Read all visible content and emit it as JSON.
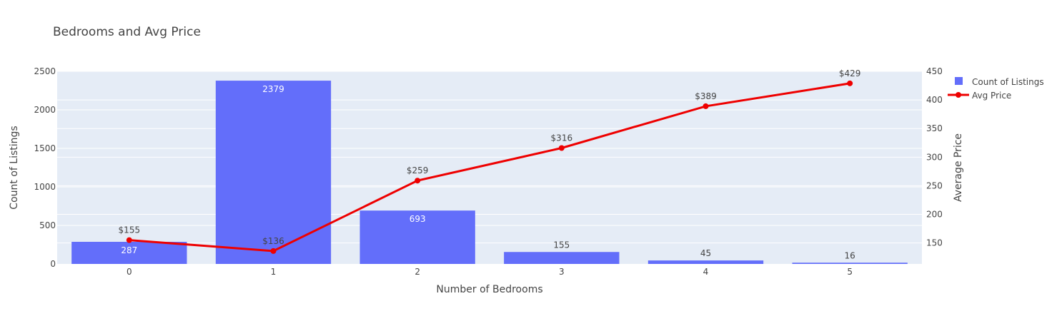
{
  "chart_data": {
    "type": "bar",
    "title": "Bedrooms and Avg Price",
    "xlabel": "Number of Bedrooms",
    "ylabel": "Count of Listings",
    "y2label": "Average Price",
    "categories": [
      "0",
      "1",
      "2",
      "3",
      "4",
      "5"
    ],
    "ylim": [
      0,
      2500
    ],
    "y2lim": [
      113.4,
      450
    ],
    "yticks": [
      "0",
      "500",
      "1000",
      "1500",
      "2000",
      "2500"
    ],
    "y2ticks": [
      "150",
      "200",
      "250",
      "300",
      "350",
      "400",
      "450"
    ],
    "legend_position": "top-right",
    "grid": true,
    "series": [
      {
        "name": "Count of Listings",
        "type": "bar",
        "axis": "left",
        "color": "#636efa",
        "values": [
          287,
          2379,
          693,
          155,
          45,
          16
        ],
        "labels": [
          "287",
          "2379",
          "693",
          "155",
          "45",
          "16"
        ]
      },
      {
        "name": "Avg Price",
        "type": "line",
        "axis": "right",
        "color": "#ee0000",
        "values": [
          155,
          136,
          259,
          316,
          389,
          429
        ],
        "labels": [
          "$155",
          "$136",
          "$259",
          "$316",
          "$389",
          "$429"
        ]
      }
    ]
  }
}
